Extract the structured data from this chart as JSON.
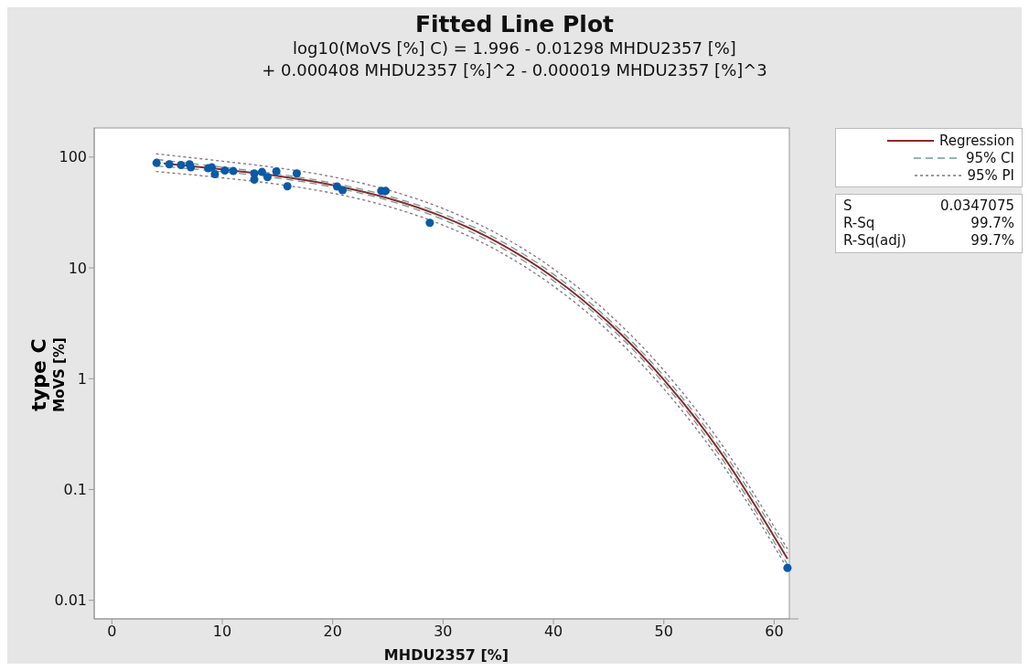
{
  "chart_data": {
    "type": "scatter",
    "title": "Fitted Line Plot",
    "subtitle": "log10(MoVS [%] C) = 1.996 - 0.01298 MHDU2357 [%]\n+ 0.000408 MHDU2357 [%]^2 - 0.000019 MHDU2357 [%]^3",
    "xlabel": "MHDU2357 [%]",
    "ylabel": "type C\nMoVS [%]",
    "log": "y",
    "xlim": [
      -1.6,
      62.2
    ],
    "ylim": [
      0.0068,
      183
    ],
    "xticks": [
      0,
      10,
      20,
      30,
      40,
      50,
      60
    ],
    "yticks": [
      {
        "value": 0.01,
        "label": "0.01"
      },
      {
        "value": 0.1,
        "label": "0.1"
      },
      {
        "value": 1,
        "label": "1"
      },
      {
        "value": 10,
        "label": "10"
      },
      {
        "value": 100,
        "label": "100"
      }
    ],
    "grid": false,
    "legend": "right",
    "annotations": [
      "S 0.0347075",
      "R-Sq 99.7%",
      "R-Sq(adj) 99.7%"
    ],
    "series": [
      {
        "color": "#0b5aa6",
        "marker": "circle",
        "x": [
          4.05,
          5.2,
          6.26,
          7.04,
          7.15,
          8.72,
          9.05,
          9.33,
          10.23,
          11.0,
          12.9,
          12.9,
          13.6,
          14.1,
          14.9,
          15.9,
          16.75,
          20.4,
          20.9,
          24.4,
          24.8,
          28.8,
          61.2
        ],
        "values": [
          88.7,
          86,
          84.8,
          86,
          80.7,
          79.2,
          80.7,
          70.2,
          75.7,
          74.8,
          71.1,
          62.5,
          73.4,
          65.9,
          74.3,
          54.5,
          71.1,
          54.2,
          50.2,
          49.5,
          49.5,
          25.5,
          0.0196
        ]
      },
      {
        "type": "line",
        "name": "Regression",
        "color": "#8b2a2a",
        "line_style": "solid",
        "marker": "none",
        "x": [
          4.7,
          10,
          15,
          20,
          25,
          30,
          35,
          40,
          45,
          50,
          55,
          61.2
        ],
        "values": [
          87.5,
          77.3,
          67.5,
          55.9,
          42.6,
          28.9,
          16.9,
          8.2,
          3.21,
          0.98,
          0.227,
          0.0237
        ]
      },
      {
        "type": "line",
        "name": "95% CI",
        "color": "#6f9a96",
        "line_style": "dashed",
        "marker": "none",
        "x": [
          4,
          10,
          15,
          20,
          25,
          30,
          35,
          40,
          45,
          50,
          55,
          61.2
        ],
        "values": [
          95.4,
          80.9,
          70.3,
          58.3,
          44.6,
          30.6,
          18.0,
          8.78,
          3.44,
          1.06,
          0.248,
          0.0266
        ]
      },
      {
        "type": "line",
        "color": "#6f9a96",
        "line_style": "dashed",
        "marker": "none",
        "x": [
          4,
          10,
          15,
          20,
          25,
          30,
          35,
          40,
          45,
          50,
          55,
          61.2
        ],
        "values": [
          83.1,
          73.8,
          64.7,
          53.6,
          40.7,
          27.3,
          15.8,
          7.65,
          3.0,
          0.91,
          0.207,
          0.0211
        ]
      },
      {
        "type": "line",
        "name": "95% PI",
        "color": "#8a6f80",
        "line_style": "dotted",
        "marker": "none",
        "x": [
          4,
          10,
          15,
          20,
          25,
          30,
          35,
          40,
          45,
          50,
          55,
          61.2
        ],
        "values": [
          107,
          91.8,
          80,
          66.3,
          50.5,
          34.3,
          20.1,
          9.8,
          3.86,
          1.19,
          0.276,
          0.0291
        ]
      },
      {
        "type": "line",
        "color": "#8a6f80",
        "line_style": "dotted",
        "marker": "none",
        "x": [
          4,
          10,
          15,
          20,
          25,
          30,
          35,
          40,
          45,
          50,
          55,
          61.2
        ],
        "values": [
          74.0,
          65.0,
          56.9,
          47.2,
          35.9,
          24.3,
          14.2,
          6.85,
          2.67,
          0.81,
          0.186,
          0.0193
        ]
      }
    ]
  }
}
